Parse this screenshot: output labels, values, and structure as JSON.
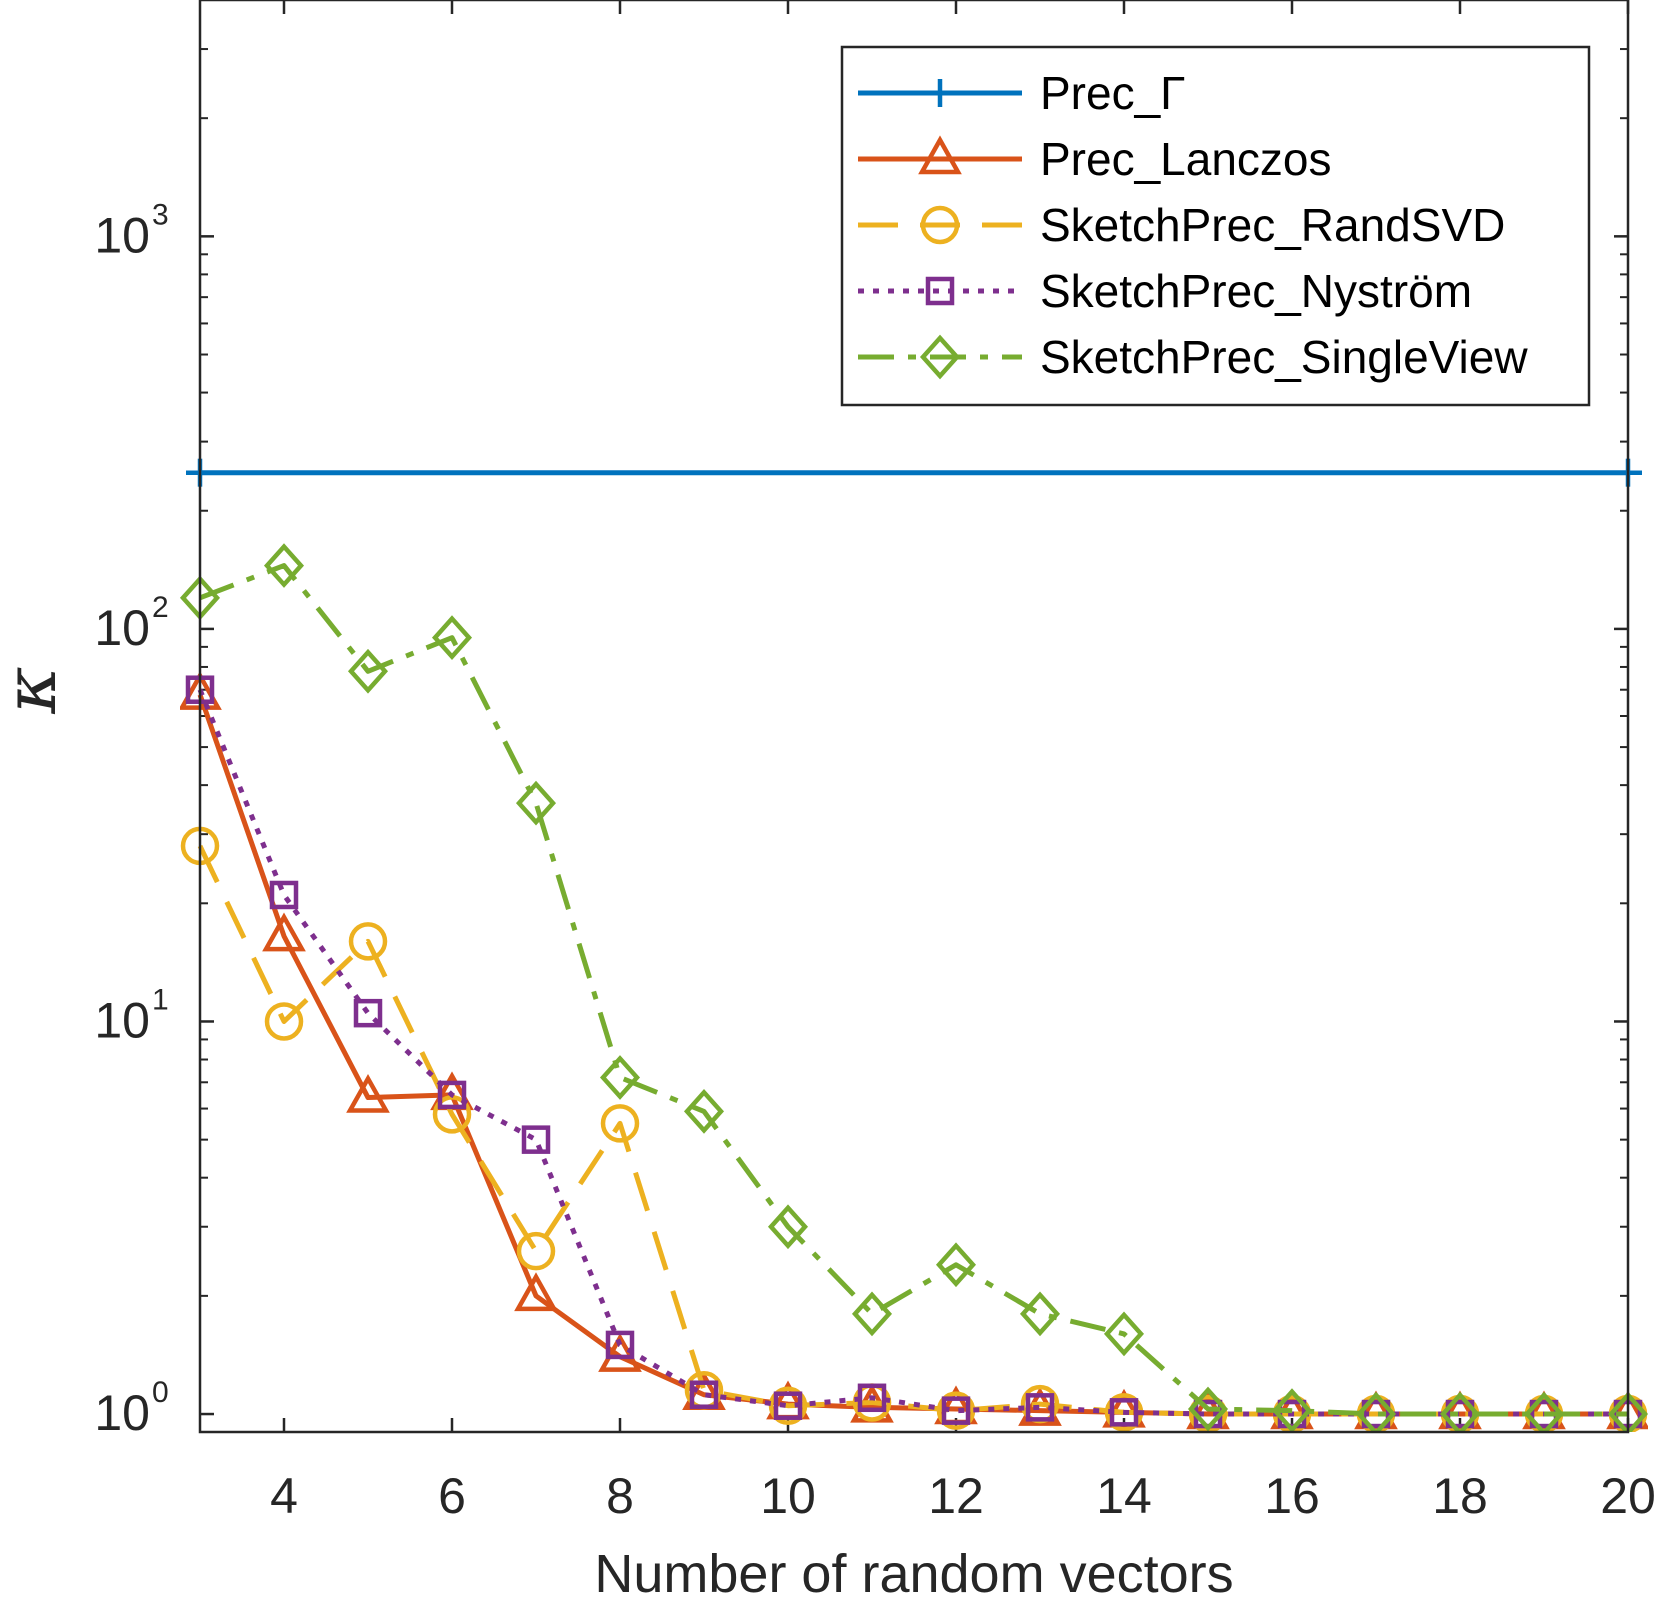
{
  "chart_data": {
    "type": "line",
    "title": "",
    "xlabel": "Number of random vectors",
    "ylabel": "κ",
    "yscale": "log",
    "xlim": [
      3,
      20
    ],
    "ylim": [
      0.9,
      4000
    ],
    "xticks": [
      4,
      6,
      8,
      10,
      12,
      14,
      16,
      18,
      20
    ],
    "yticks": [
      {
        "value": 1,
        "base": "10",
        "exp": "0"
      },
      {
        "value": 10,
        "base": "10",
        "exp": "1"
      },
      {
        "value": 100,
        "base": "10",
        "exp": "2"
      },
      {
        "value": 1000,
        "base": "10",
        "exp": "3"
      }
    ],
    "grid": false,
    "legend_position": "top-right",
    "x": [
      3,
      4,
      5,
      6,
      7,
      8,
      9,
      10,
      11,
      12,
      13,
      14,
      15,
      16,
      17,
      18,
      19,
      20
    ],
    "series": [
      {
        "name": "Prec_Γ",
        "color": "#0072BD",
        "dash": "solid",
        "marker": "plus",
        "x": [
          3,
          20
        ],
        "values": [
          250,
          250
        ]
      },
      {
        "name": "Prec_Lanczos",
        "color": "#D95319",
        "dash": "solid",
        "marker": "triangle",
        "values": [
          68,
          16.5,
          6.4,
          6.5,
          2.0,
          1.4,
          1.12,
          1.06,
          1.04,
          1.03,
          1.02,
          1.01,
          1.0,
          1.0,
          1.0,
          1.0,
          1.0,
          1.0
        ]
      },
      {
        "name": "SketchPrec_RandSVD",
        "color": "#EDB120",
        "dash": "dashed",
        "marker": "circle",
        "values": [
          28,
          10,
          16,
          5.8,
          2.6,
          5.5,
          1.15,
          1.05,
          1.07,
          1.02,
          1.06,
          1.01,
          1.0,
          1.0,
          1.0,
          1.0,
          1.0,
          1.0
        ]
      },
      {
        "name": "SketchPrec_Nyström",
        "color": "#7E2F8E",
        "dash": "dotted",
        "marker": "square",
        "values": [
          70,
          21,
          10.5,
          6.5,
          5.0,
          1.5,
          1.12,
          1.05,
          1.1,
          1.02,
          1.04,
          1.01,
          1.0,
          1.0,
          1.0,
          1.0,
          1.0,
          1.0
        ]
      },
      {
        "name": "SketchPrec_SingleView",
        "color": "#77AC30",
        "dash": "dashdot",
        "marker": "diamond",
        "values": [
          120,
          145,
          78,
          95,
          36,
          7.2,
          5.9,
          3.0,
          1.8,
          2.4,
          1.8,
          1.6,
          1.03,
          1.02,
          1.0,
          1.0,
          1.0,
          1.0
        ]
      }
    ]
  }
}
